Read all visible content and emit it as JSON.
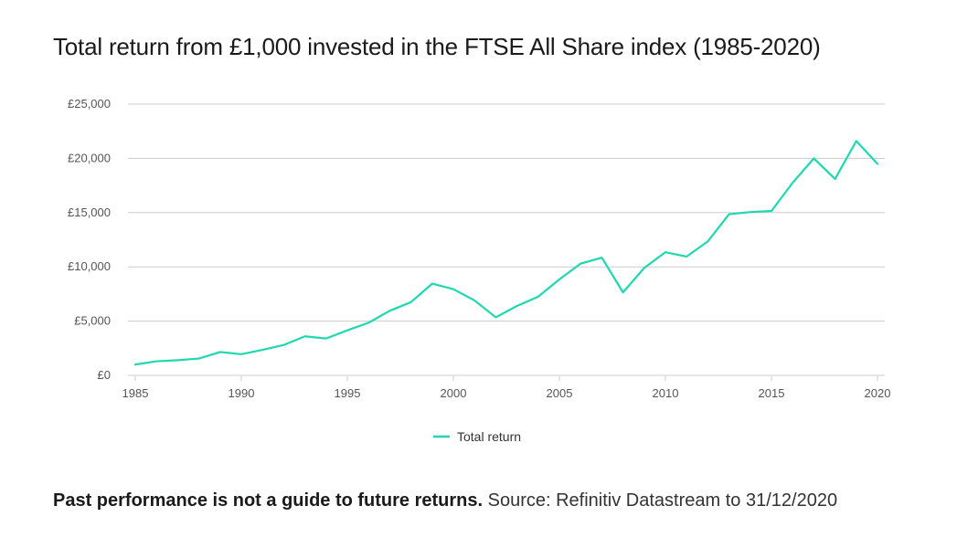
{
  "chart_data": {
    "type": "line",
    "title": "Total return from £1,000 invested in the FTSE All Share index (1985-2020)",
    "xlabel": "",
    "ylabel": "",
    "x": [
      1985,
      1986,
      1987,
      1988,
      1989,
      1990,
      1991,
      1992,
      1993,
      1994,
      1995,
      1996,
      1997,
      1998,
      1999,
      2000,
      2001,
      2002,
      2003,
      2004,
      2005,
      2006,
      2007,
      2008,
      2009,
      2010,
      2011,
      2012,
      2013,
      2014,
      2015,
      2016,
      2017,
      2018,
      2019,
      2020
    ],
    "series": [
      {
        "name": "Total return",
        "color": "#1fd8b0",
        "values": [
          1000,
          1300,
          1400,
          1550,
          2150,
          1950,
          2350,
          2800,
          3600,
          3400,
          4150,
          4850,
          5950,
          6750,
          8450,
          7950,
          6900,
          5350,
          6400,
          7250,
          8850,
          10300,
          10850,
          7650,
          9900,
          11350,
          10950,
          12350,
          14850,
          15050,
          15150,
          17750,
          20000,
          18100,
          21600,
          19500
        ]
      }
    ],
    "xlim": [
      1985,
      2020
    ],
    "ylim": [
      0,
      25000
    ],
    "x_ticks": [
      1985,
      1990,
      1995,
      2000,
      2005,
      2010,
      2015,
      2020
    ],
    "x_tick_labels": [
      "1985",
      "1990",
      "1995",
      "2000",
      "2005",
      "2010",
      "2015",
      "2020"
    ],
    "y_ticks": [
      0,
      5000,
      10000,
      15000,
      20000,
      25000
    ],
    "y_tick_labels": [
      "£0",
      "£5,000",
      "£10,000",
      "£15,000",
      "£20,000",
      "£25,000"
    ],
    "grid": true,
    "legend_position": "bottom-center"
  },
  "footnote": {
    "disclaimer": "Past performance is not a guide to future returns.",
    "source": " Source: Refinitiv Datastream to 31/12/2020"
  }
}
